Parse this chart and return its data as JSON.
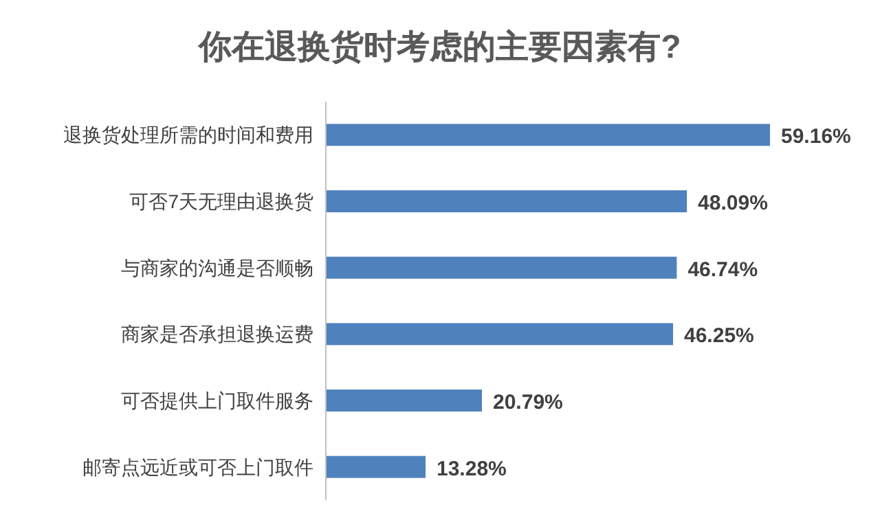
{
  "chart_data": {
    "type": "bar",
    "orientation": "horizontal",
    "title": "你在退换货时考虑的主要因素有?",
    "categories": [
      "退换货处理所需的时间和费用",
      "可否7天无理由退换货",
      "与商家的沟通是否顺畅",
      "商家是否承担退换运费",
      "可否提供上门取件服务",
      "邮寄点远近或可否上门取件"
    ],
    "values": [
      59.16,
      48.09,
      46.74,
      46.25,
      20.79,
      13.28
    ],
    "value_labels": [
      "59.16%",
      "48.09%",
      "46.74%",
      "46.25%",
      "20.79%",
      "13.28%"
    ],
    "color": "#4f81bd"
  }
}
